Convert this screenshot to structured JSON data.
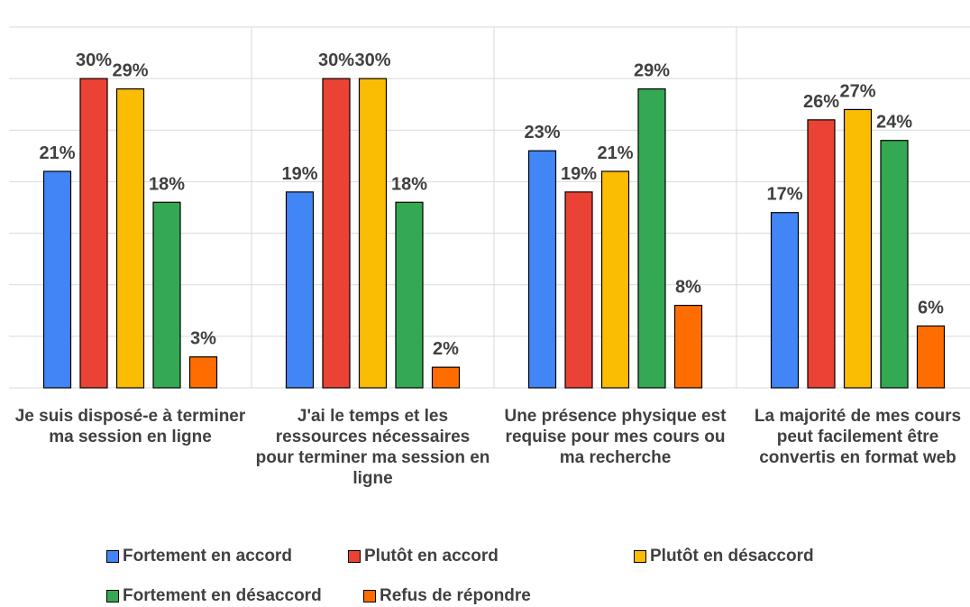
{
  "chart_data": {
    "type": "bar",
    "categories": [
      "Je suis disposé-e à terminer ma session en ligne",
      "J'ai le temps et les ressources nécessaires pour terminer ma session en ligne",
      "Une présence physique est requise pour mes cours ou ma recherche",
      "La majorité de mes cours peut facilement être convertis en format web"
    ],
    "series": [
      {
        "name": "Fortement en accord",
        "color": "#4285f4",
        "values": [
          21,
          19,
          23,
          17
        ],
        "value_labels": [
          "21%",
          "19%",
          "23%",
          "17%"
        ]
      },
      {
        "name": "Plutôt en accord",
        "color": "#ea4335",
        "values": [
          30,
          30,
          19,
          26
        ],
        "value_labels": [
          "30%",
          "30%",
          "19%",
          "26%"
        ]
      },
      {
        "name": "Plutôt en désaccord",
        "color": "#fbbc04",
        "values": [
          29,
          30,
          21,
          27
        ],
        "value_labels": [
          "29%",
          "30%",
          "21%",
          "27%"
        ]
      },
      {
        "name": "Fortement en désaccord",
        "color": "#34a853",
        "values": [
          18,
          18,
          29,
          24
        ],
        "value_labels": [
          "18%",
          "18%",
          "29%",
          "24%"
        ]
      },
      {
        "name": "Refus de répondre",
        "color": "#ff6d01",
        "values": [
          3,
          2,
          8,
          6
        ],
        "value_labels": [
          "3%",
          "2%",
          "8%",
          "6%"
        ]
      }
    ],
    "ylim": [
      0,
      35
    ],
    "yticks": [
      0,
      5,
      10,
      15,
      20,
      25,
      30,
      35
    ],
    "grid": true,
    "legend": "bottom"
  }
}
